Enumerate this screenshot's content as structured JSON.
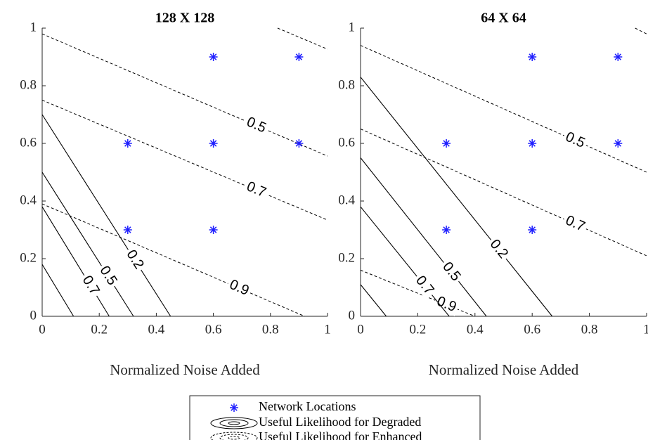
{
  "chart_data": [
    {
      "type": "contour",
      "title": "128 X 128",
      "xlabel": "Normalized Noise Added",
      "xlim": [
        0,
        1
      ],
      "ylim": [
        0,
        1
      ],
      "xticks": [
        0,
        0.2,
        0.4,
        0.6,
        0.8,
        1
      ],
      "yticks": [
        0,
        0.2,
        0.4,
        0.6,
        0.8,
        1
      ],
      "points": {
        "color": "#1f1fff",
        "x": [
          0.3,
          0.6,
          0.3,
          0.6,
          0.9,
          0.6,
          0.9
        ],
        "y": [
          0.3,
          0.3,
          0.6,
          0.6,
          0.6,
          0.9,
          0.9
        ]
      },
      "contours": [
        {
          "level": 0.5,
          "style": "dashed",
          "x": [
            0,
            1
          ],
          "y": [
            0.98,
            0.556
          ]
        },
        {
          "level": 0.7,
          "style": "dashed",
          "x": [
            0,
            1
          ],
          "y": [
            0.75,
            0.334
          ]
        },
        {
          "level": 0.9,
          "style": "dashed",
          "x": [
            0,
            0.92
          ],
          "y": [
            0.39,
            0
          ]
        },
        {
          "level": null,
          "style": "dashed",
          "x": [
            0.825,
            1
          ],
          "y": [
            1,
            0.927
          ]
        },
        {
          "level": 0.2,
          "style": "solid",
          "x": [
            0,
            0.45
          ],
          "y": [
            0.7,
            0
          ]
        },
        {
          "level": 0.5,
          "style": "solid",
          "x": [
            0,
            0.32
          ],
          "y": [
            0.5,
            0
          ]
        },
        {
          "level": 0.7,
          "style": "solid",
          "x": [
            0,
            0.235
          ],
          "y": [
            0.38,
            0
          ]
        },
        {
          "level": null,
          "style": "solid",
          "x": [
            0,
            0.11
          ],
          "y": [
            0.18,
            0
          ]
        }
      ]
    },
    {
      "type": "contour",
      "title": "64 X 64",
      "xlabel": "Normalized Noise Added",
      "xlim": [
        0,
        1
      ],
      "ylim": [
        0,
        1
      ],
      "xticks": [
        0,
        0.2,
        0.4,
        0.6,
        0.8,
        1
      ],
      "yticks": [
        0,
        0.2,
        0.4,
        0.6,
        0.8,
        1
      ],
      "points": {
        "color": "#1f1fff",
        "x": [
          0.3,
          0.6,
          0.3,
          0.6,
          0.9,
          0.6,
          0.9
        ],
        "y": [
          0.3,
          0.3,
          0.6,
          0.6,
          0.6,
          0.9,
          0.9
        ]
      },
      "contours": [
        {
          "level": 0.5,
          "style": "dashed",
          "x": [
            0,
            1
          ],
          "y": [
            0.94,
            0.5
          ]
        },
        {
          "level": 0.7,
          "style": "dashed",
          "x": [
            0,
            1
          ],
          "y": [
            0.65,
            0.21
          ]
        },
        {
          "level": 0.9,
          "style": "dashed",
          "x": [
            0,
            0.4
          ],
          "y": [
            0.16,
            0
          ]
        },
        {
          "level": null,
          "style": "dashed",
          "x": [
            0.96,
            1
          ],
          "y": [
            1,
            0.98
          ]
        },
        {
          "level": 0.2,
          "style": "solid",
          "x": [
            0,
            0.67
          ],
          "y": [
            0.83,
            0
          ]
        },
        {
          "level": 0.5,
          "style": "solid",
          "x": [
            0,
            0.44
          ],
          "y": [
            0.55,
            0
          ]
        },
        {
          "level": 0.7,
          "style": "solid",
          "x": [
            0,
            0.31
          ],
          "y": [
            0.38,
            0
          ]
        },
        {
          "level": null,
          "style": "solid",
          "x": [
            0,
            0.09
          ],
          "y": [
            0.11,
            0
          ]
        }
      ]
    }
  ],
  "legend": {
    "entries": [
      "Network Locations",
      "Useful Likelihood for Degraded",
      "Useful Likelihood for Enhanced"
    ]
  }
}
